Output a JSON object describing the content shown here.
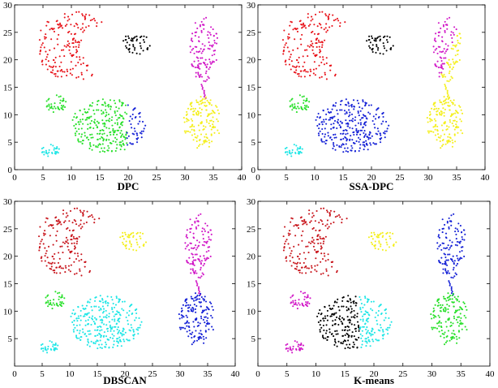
{
  "chart_data": [
    {
      "type": "scatter",
      "title": "DPC",
      "xlim": [
        0,
        40
      ],
      "ylim": [
        0,
        30
      ],
      "xticks": [
        0,
        5,
        10,
        15,
        20,
        25,
        30,
        35,
        40
      ],
      "yticks": [
        0,
        5,
        10,
        15,
        20,
        25,
        30
      ],
      "xtick_labels": [
        "0",
        "5",
        "10",
        "15",
        "20",
        "25",
        "30",
        "35",
        "40"
      ],
      "ytick_labels": [
        "0",
        "5",
        "10",
        "15",
        "20",
        "25",
        "30"
      ],
      "groups": [
        {
          "name": "crescent",
          "shape": "crescent",
          "cx": 10.5,
          "cy": 22.5,
          "n": 180,
          "color": "#e8141b"
        },
        {
          "name": "small-top-blob",
          "shape": "ellipse",
          "cx": 21.5,
          "cy": 23.0,
          "rx": 2.5,
          "ry": 2.0,
          "n": 45,
          "color": "#000000"
        },
        {
          "name": "upper-right-ellipse",
          "shape": "ellipse",
          "cx": 33.3,
          "cy": 22.0,
          "rx": 2.6,
          "ry": 6.0,
          "n": 120,
          "color": "#d118c7"
        },
        {
          "name": "bridge",
          "shape": "line",
          "x1": 33.0,
          "y1": 15.5,
          "x2": 33.6,
          "y2": 13.0,
          "n": 10,
          "color": "#d118c7"
        },
        {
          "name": "lower-right-ellipse",
          "shape": "ellipse",
          "cx": 33.0,
          "cy": 8.5,
          "rx": 3.3,
          "ry": 4.8,
          "n": 150,
          "color": "#f4ef1d"
        },
        {
          "name": "big-blob-left",
          "shape": "ellipse",
          "cx": 16.5,
          "cy": 8.0,
          "rx": 6.6,
          "ry": 4.9,
          "n": 300,
          "color": "#29e02b",
          "xmax": 19.8
        },
        {
          "name": "big-blob-right",
          "shape": "ellipse",
          "cx": 16.5,
          "cy": 8.0,
          "rx": 6.6,
          "ry": 4.9,
          "n": 300,
          "color": "#1521d6",
          "xmin": 19.8
        },
        {
          "name": "small-blob-upper",
          "shape": "ellipse",
          "cx": 7.3,
          "cy": 12.0,
          "rx": 1.8,
          "ry": 1.6,
          "n": 40,
          "color": "#29e02b"
        },
        {
          "name": "small-blob-lower",
          "shape": "ellipse",
          "cx": 6.3,
          "cy": 3.5,
          "rx": 1.6,
          "ry": 1.1,
          "n": 30,
          "color": "#1fe6e6"
        }
      ]
    },
    {
      "type": "scatter",
      "title": "SSA-DPC",
      "xlim": [
        0,
        40
      ],
      "ylim": [
        0,
        30
      ],
      "xticks": [
        0,
        5,
        10,
        15,
        20,
        25,
        30,
        35,
        40
      ],
      "yticks": [
        0,
        5,
        10,
        15,
        20,
        25,
        30
      ],
      "xtick_labels": [
        "0",
        "5",
        "10",
        "15",
        "20",
        "25",
        "30",
        "35",
        "40"
      ],
      "ytick_labels": [
        "0",
        "5",
        "10",
        "15",
        "20",
        "25",
        "30"
      ],
      "groups": [
        {
          "name": "crescent",
          "shape": "crescent",
          "cx": 10.5,
          "cy": 22.5,
          "n": 180,
          "color": "#e8141b"
        },
        {
          "name": "small-top-blob",
          "shape": "ellipse",
          "cx": 21.5,
          "cy": 23.0,
          "rx": 2.5,
          "ry": 2.0,
          "n": 45,
          "color": "#000000"
        },
        {
          "name": "upper-right-ellipse-left",
          "shape": "ellipse",
          "cx": 33.3,
          "cy": 22.0,
          "rx": 2.6,
          "ry": 6.0,
          "n": 120,
          "color": "#d118c7",
          "split": "diag-left"
        },
        {
          "name": "upper-right-ellipse-right",
          "shape": "ellipse",
          "cx": 33.3,
          "cy": 22.0,
          "rx": 2.6,
          "ry": 6.0,
          "n": 120,
          "color": "#f4ef1d",
          "split": "diag-right"
        },
        {
          "name": "bridge",
          "shape": "line",
          "x1": 33.0,
          "y1": 15.5,
          "x2": 33.6,
          "y2": 13.0,
          "n": 10,
          "color": "#f4ef1d"
        },
        {
          "name": "lower-right-ellipse",
          "shape": "ellipse",
          "cx": 33.0,
          "cy": 8.5,
          "rx": 3.3,
          "ry": 4.8,
          "n": 150,
          "color": "#f4ef1d"
        },
        {
          "name": "big-blob",
          "shape": "ellipse",
          "cx": 16.5,
          "cy": 8.0,
          "rx": 6.6,
          "ry": 4.9,
          "n": 300,
          "color": "#1521d6"
        },
        {
          "name": "small-blob-upper",
          "shape": "ellipse",
          "cx": 7.3,
          "cy": 12.0,
          "rx": 1.8,
          "ry": 1.6,
          "n": 40,
          "color": "#29e02b"
        },
        {
          "name": "small-blob-lower",
          "shape": "ellipse",
          "cx": 6.3,
          "cy": 3.5,
          "rx": 1.6,
          "ry": 1.1,
          "n": 30,
          "color": "#1fe6e6"
        }
      ]
    },
    {
      "type": "scatter",
      "title": "DBSCAN",
      "xlim": [
        0,
        40
      ],
      "ylim": [
        0,
        30
      ],
      "xticks": [
        0,
        5,
        10,
        15,
        20,
        25,
        30,
        35,
        40
      ],
      "yticks": [
        5,
        10,
        15,
        20,
        25,
        30
      ],
      "xtick_labels": [
        "0",
        "5",
        "10",
        "15",
        "20",
        "25",
        "30",
        "35",
        "40"
      ],
      "ytick_labels": [
        "5",
        "10",
        "15",
        "20",
        "25",
        "30"
      ],
      "groups": [
        {
          "name": "crescent",
          "shape": "crescent",
          "cx": 10.5,
          "cy": 22.5,
          "n": 180,
          "color": "#c8161d"
        },
        {
          "name": "small-top-blob",
          "shape": "ellipse",
          "cx": 21.5,
          "cy": 23.0,
          "rx": 2.5,
          "ry": 2.0,
          "n": 45,
          "color": "#f4ef1d"
        },
        {
          "name": "upper-right-ellipse",
          "shape": "ellipse",
          "cx": 33.3,
          "cy": 22.0,
          "rx": 2.6,
          "ry": 6.0,
          "n": 120,
          "color": "#d118c7"
        },
        {
          "name": "bridge",
          "shape": "line",
          "x1": 33.0,
          "y1": 15.5,
          "x2": 33.6,
          "y2": 13.0,
          "n": 10,
          "color": "#d118c7"
        },
        {
          "name": "lower-right-ellipse",
          "shape": "ellipse",
          "cx": 33.0,
          "cy": 8.5,
          "rx": 3.3,
          "ry": 4.8,
          "n": 150,
          "color": "#1521d6"
        },
        {
          "name": "big-blob",
          "shape": "ellipse",
          "cx": 16.5,
          "cy": 8.0,
          "rx": 6.6,
          "ry": 4.9,
          "n": 300,
          "color": "#1fe6e6"
        },
        {
          "name": "small-blob-upper",
          "shape": "ellipse",
          "cx": 7.3,
          "cy": 12.0,
          "rx": 1.8,
          "ry": 1.6,
          "n": 40,
          "color": "#29e02b"
        },
        {
          "name": "small-blob-lower",
          "shape": "ellipse",
          "cx": 6.3,
          "cy": 3.5,
          "rx": 1.6,
          "ry": 1.1,
          "n": 30,
          "color": "#1fe6e6"
        }
      ]
    },
    {
      "type": "scatter",
      "title": "K-means",
      "xlim": [
        0,
        40
      ],
      "ylim": [
        0,
        30
      ],
      "xticks": [
        0,
        5,
        10,
        15,
        20,
        25,
        30,
        35,
        40
      ],
      "yticks": [
        5,
        10,
        15,
        20,
        25,
        30
      ],
      "xtick_labels": [
        "0",
        "5",
        "10",
        "15",
        "20",
        "25",
        "30",
        "35",
        "40"
      ],
      "ytick_labels": [
        "5",
        "10",
        "15",
        "20",
        "25",
        "30"
      ],
      "groups": [
        {
          "name": "crescent",
          "shape": "crescent",
          "cx": 10.5,
          "cy": 22.5,
          "n": 180,
          "color": "#c8161d"
        },
        {
          "name": "small-top-blob",
          "shape": "ellipse",
          "cx": 21.5,
          "cy": 23.0,
          "rx": 2.5,
          "ry": 2.0,
          "n": 45,
          "color": "#f4ef1d"
        },
        {
          "name": "upper-right-ellipse",
          "shape": "ellipse",
          "cx": 33.3,
          "cy": 22.0,
          "rx": 2.6,
          "ry": 6.0,
          "n": 120,
          "color": "#1521d6"
        },
        {
          "name": "bridge",
          "shape": "line",
          "x1": 33.0,
          "y1": 15.5,
          "x2": 33.6,
          "y2": 13.0,
          "n": 10,
          "color": "#1521d6"
        },
        {
          "name": "lower-right-ellipse",
          "shape": "ellipse",
          "cx": 33.0,
          "cy": 8.5,
          "rx": 3.3,
          "ry": 4.8,
          "n": 150,
          "color": "#29e02b"
        },
        {
          "name": "big-blob-left",
          "shape": "ellipse",
          "cx": 16.5,
          "cy": 8.0,
          "rx": 6.6,
          "ry": 4.9,
          "n": 300,
          "color": "#000000",
          "xmax": 17.5
        },
        {
          "name": "big-blob-right",
          "shape": "ellipse",
          "cx": 16.5,
          "cy": 8.0,
          "rx": 6.6,
          "ry": 4.9,
          "n": 300,
          "color": "#1fe6e6",
          "xmin": 17.5
        },
        {
          "name": "small-blob-upper",
          "shape": "ellipse",
          "cx": 7.3,
          "cy": 12.0,
          "rx": 1.8,
          "ry": 1.6,
          "n": 40,
          "color": "#d118c7"
        },
        {
          "name": "small-blob-lower",
          "shape": "ellipse",
          "cx": 6.3,
          "cy": 3.5,
          "rx": 1.6,
          "ry": 1.1,
          "n": 30,
          "color": "#d118c7"
        }
      ]
    }
  ]
}
